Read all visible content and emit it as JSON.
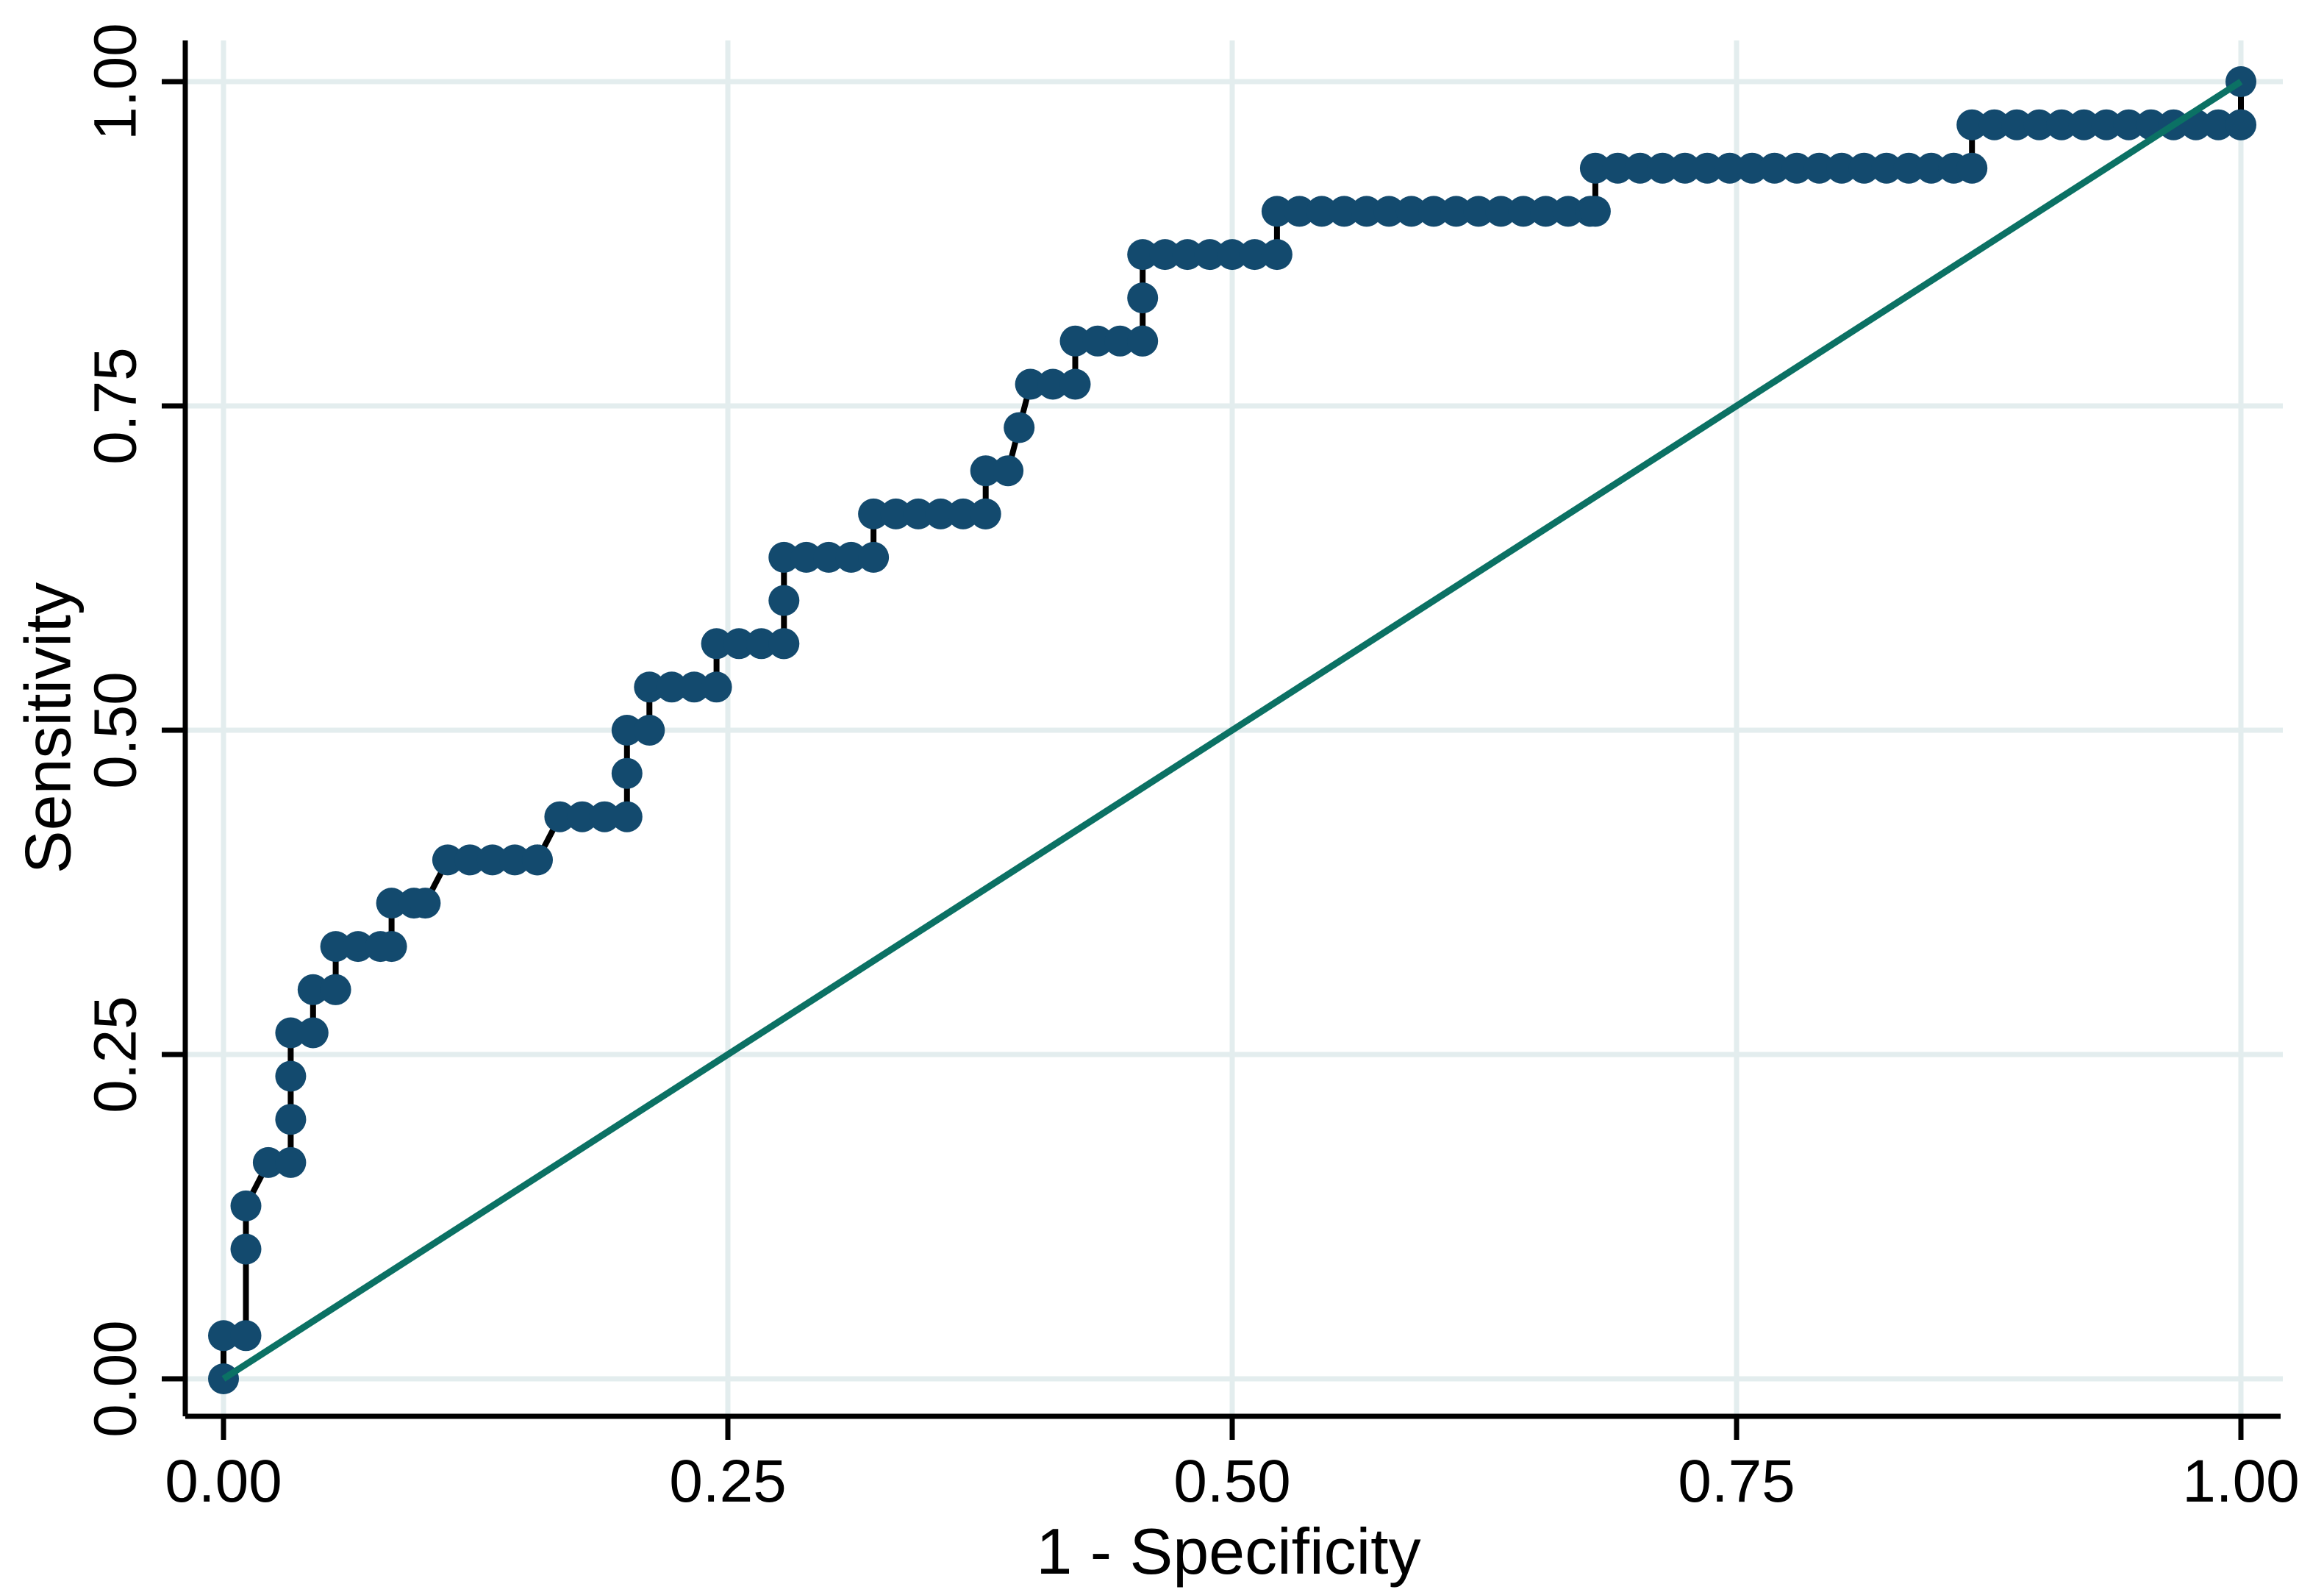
{
  "chart_data": {
    "type": "line",
    "subtype": "roc-step-curve-with-markers",
    "title": "",
    "xlabel": "1 - Specificity",
    "ylabel": "Sensitivity",
    "xlim": [
      0,
      1
    ],
    "ylim": [
      0,
      1
    ],
    "grid": true,
    "legend": "none",
    "x_tick_values": [
      0,
      0.25,
      0.5,
      0.75,
      1
    ],
    "x_tick_labels": [
      "0.00",
      "0.25",
      "0.50",
      "0.75",
      "1.00"
    ],
    "y_tick_values": [
      0,
      0.25,
      0.5,
      0.75,
      1
    ],
    "y_tick_labels": [
      "0.00",
      "0.25",
      "0.50",
      "0.75",
      "1.00"
    ],
    "x_step": 0.0111,
    "roc_runs": [
      {
        "sens": 0.0,
        "x_start": 0.0,
        "x_end": 0.0
      },
      {
        "sens": 0.0333,
        "x_start": 0.0,
        "x_end": 0.0111
      },
      {
        "sens": 0.1,
        "x_start": 0.0111,
        "x_end": 0.0111
      },
      {
        "sens": 0.1333,
        "x_start": 0.0111,
        "x_end": 0.0111
      },
      {
        "sens": 0.1667,
        "x_start": 0.0222,
        "x_end": 0.0333
      },
      {
        "sens": 0.2,
        "x_start": 0.0333,
        "x_end": 0.0333
      },
      {
        "sens": 0.2333,
        "x_start": 0.0333,
        "x_end": 0.0333
      },
      {
        "sens": 0.2667,
        "x_start": 0.0333,
        "x_end": 0.0444
      },
      {
        "sens": 0.3,
        "x_start": 0.0444,
        "x_end": 0.0556
      },
      {
        "sens": 0.3333,
        "x_start": 0.0556,
        "x_end": 0.0833
      },
      {
        "sens": 0.3667,
        "x_start": 0.0833,
        "x_end": 0.1
      },
      {
        "sens": 0.4,
        "x_start": 0.1111,
        "x_end": 0.1556
      },
      {
        "sens": 0.4333,
        "x_start": 0.1667,
        "x_end": 0.2
      },
      {
        "sens": 0.4667,
        "x_start": 0.2,
        "x_end": 0.2
      },
      {
        "sens": 0.5,
        "x_start": 0.2,
        "x_end": 0.2111
      },
      {
        "sens": 0.5333,
        "x_start": 0.2111,
        "x_end": 0.2444
      },
      {
        "sens": 0.5667,
        "x_start": 0.2444,
        "x_end": 0.2778
      },
      {
        "sens": 0.6,
        "x_start": 0.2778,
        "x_end": 0.2778
      },
      {
        "sens": 0.6333,
        "x_start": 0.2778,
        "x_end": 0.3222
      },
      {
        "sens": 0.6667,
        "x_start": 0.3222,
        "x_end": 0.3778
      },
      {
        "sens": 0.7,
        "x_start": 0.3778,
        "x_end": 0.3889
      },
      {
        "sens": 0.7333,
        "x_start": 0.3944,
        "x_end": 0.3944
      },
      {
        "sens": 0.7667,
        "x_start": 0.4,
        "x_end": 0.4222
      },
      {
        "sens": 0.8,
        "x_start": 0.4222,
        "x_end": 0.4556
      },
      {
        "sens": 0.8333,
        "x_start": 0.4556,
        "x_end": 0.4556
      },
      {
        "sens": 0.8667,
        "x_start": 0.4556,
        "x_end": 0.5222
      },
      {
        "sens": 0.9,
        "x_start": 0.5222,
        "x_end": 0.68
      },
      {
        "sens": 0.9333,
        "x_start": 0.68,
        "x_end": 0.8667
      },
      {
        "sens": 0.9667,
        "x_start": 0.8667,
        "x_end": 1.0
      },
      {
        "sens": 1.0,
        "x_start": 1.0,
        "x_end": 1.0
      }
    ],
    "reference_line": {
      "x": [
        0,
        1
      ],
      "y": [
        0,
        1
      ]
    },
    "colors": {
      "marker": "#134a6e",
      "step_line": "#000000",
      "reference_line": "#0b7164",
      "grid": "#e3edee",
      "axis": "#000000",
      "text": "#000000",
      "background": "#ffffff"
    },
    "marker_radius_px": 21
  }
}
